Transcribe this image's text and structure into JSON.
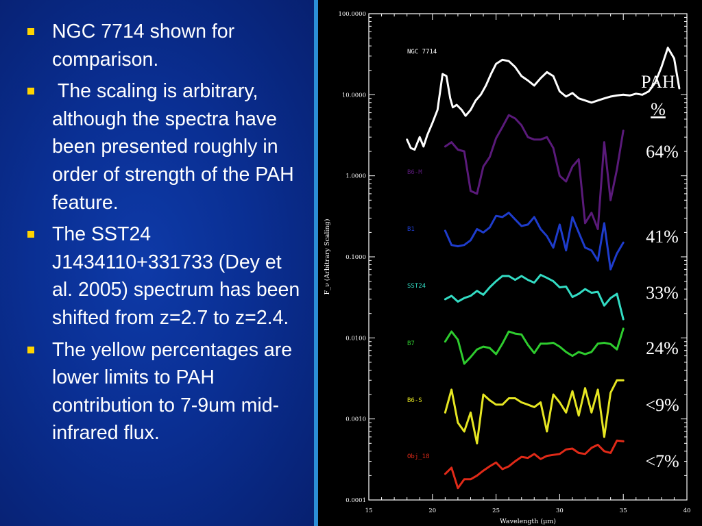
{
  "bullets": [
    {
      "text": "NGC 7714 shown for comparison."
    },
    {
      "text": " The scaling is arbitrary, although the spectra have been presented roughly in order of strength of the PAH feature."
    },
    {
      "text": "The SST24 J1434110+331733 (Dey et al. 2005) spectrum has been shifted from z=2.7 to z=2.4."
    },
    {
      "text": "The yellow percentages are lower limits to PAH contribution to 7-9um mid-infrared flux."
    }
  ],
  "colors": {
    "slide_background": "#0a2f93",
    "divider": "#2c8fd6",
    "bullet_marker": "#ffd400",
    "pah_text": "#ffffff"
  },
  "pah": {
    "header_line1": "PAH",
    "header_line2": "%",
    "values": [
      "64%",
      "41%",
      "33%",
      "24%",
      "<9%",
      "<7%"
    ]
  },
  "chart_data": {
    "type": "line",
    "xlabel": "Wavelength (μm)",
    "ylabel": "F_ν (Arbitrary Scaling)",
    "xlim": [
      15,
      40
    ],
    "ylim": [
      0.0001,
      100
    ],
    "yscale": "log",
    "x_ticks": [
      "15",
      "20",
      "25",
      "30",
      "35",
      "40"
    ],
    "y_ticks": [
      "100.0000",
      "10.0000",
      "1.0000",
      "0.1000",
      "0.0100",
      "0.0010",
      "0.0001"
    ],
    "grid": false,
    "series": [
      {
        "name": "NGC 7714",
        "color": "#ffffff",
        "x": [
          18.0,
          18.3,
          18.6,
          19.0,
          19.3,
          19.6,
          20.0,
          20.4,
          20.8,
          21.1,
          21.4,
          21.6,
          21.9,
          22.3,
          22.6,
          23.0,
          23.4,
          23.8,
          24.2,
          24.6,
          25.0,
          25.5,
          26.0,
          26.5,
          27.0,
          27.5,
          28.0,
          28.5,
          29.0,
          29.5,
          30.0,
          30.5,
          31.0,
          31.5,
          32.0,
          32.5,
          33.0,
          33.5,
          34.0,
          34.5,
          35.0,
          35.5,
          36.0,
          36.5,
          37.0,
          37.5,
          38.0,
          38.5,
          39.0,
          39.4
        ],
        "y": [
          2.8,
          2.2,
          2.1,
          3.0,
          2.3,
          3.2,
          4.5,
          6.5,
          18.0,
          17.0,
          9.0,
          7.0,
          7.5,
          6.5,
          5.5,
          6.5,
          8.5,
          10.0,
          13.0,
          18.0,
          24.0,
          27.0,
          26.0,
          22.0,
          17.0,
          15.0,
          13.0,
          16.0,
          19.0,
          17.0,
          11.0,
          9.5,
          10.5,
          9.0,
          8.5,
          8.0,
          8.5,
          9.0,
          9.5,
          9.8,
          10.0,
          9.8,
          10.3,
          10.0,
          11.0,
          14.0,
          22.0,
          38.0,
          28.0,
          12.0
        ]
      },
      {
        "name": "B6-M",
        "color": "#5a1a7a",
        "x": [
          21.0,
          21.5,
          22.0,
          22.5,
          23.0,
          23.5,
          24.0,
          24.5,
          25.0,
          25.5,
          26.0,
          26.5,
          27.0,
          27.5,
          28.0,
          28.5,
          29.0,
          29.5,
          30.0,
          30.5,
          31.0,
          31.5,
          32.0,
          32.5,
          33.0,
          33.5,
          34.0,
          34.5,
          35.0
        ],
        "y": [
          2.3,
          2.6,
          2.1,
          2.0,
          0.65,
          0.6,
          1.3,
          1.7,
          2.9,
          4.0,
          5.6,
          5.1,
          4.2,
          3.0,
          2.8,
          2.8,
          3.0,
          2.2,
          1.0,
          0.85,
          1.3,
          1.6,
          0.26,
          0.35,
          0.22,
          2.6,
          0.5,
          1.2,
          3.6
        ]
      },
      {
        "name": "B1",
        "color": "#1e3ccc",
        "x": [
          21.0,
          21.5,
          22.0,
          22.5,
          23.0,
          23.5,
          24.0,
          24.5,
          25.0,
          25.5,
          26.0,
          26.5,
          27.0,
          27.5,
          28.0,
          28.5,
          29.0,
          29.5,
          30.0,
          30.5,
          31.0,
          31.5,
          32.0,
          32.5,
          33.0,
          33.5,
          34.0,
          34.5,
          35.0
        ],
        "y": [
          0.21,
          0.14,
          0.135,
          0.14,
          0.16,
          0.22,
          0.2,
          0.23,
          0.32,
          0.31,
          0.35,
          0.29,
          0.24,
          0.25,
          0.31,
          0.22,
          0.18,
          0.13,
          0.25,
          0.12,
          0.31,
          0.2,
          0.13,
          0.12,
          0.09,
          0.26,
          0.07,
          0.11,
          0.15
        ]
      },
      {
        "name": "SST24",
        "color": "#33dcc4",
        "x": [
          21.0,
          21.5,
          22.0,
          22.5,
          23.0,
          23.5,
          24.0,
          24.5,
          25.0,
          25.5,
          26.0,
          26.5,
          27.0,
          27.5,
          28.0,
          28.5,
          29.0,
          29.5,
          30.0,
          30.5,
          31.0,
          31.5,
          32.0,
          32.5,
          33.0,
          33.5,
          34.0,
          34.5,
          35.0
        ],
        "y": [
          0.03,
          0.033,
          0.028,
          0.031,
          0.033,
          0.038,
          0.034,
          0.042,
          0.05,
          0.058,
          0.058,
          0.052,
          0.058,
          0.052,
          0.048,
          0.06,
          0.055,
          0.05,
          0.042,
          0.043,
          0.032,
          0.035,
          0.04,
          0.036,
          0.037,
          0.025,
          0.031,
          0.035,
          0.017
        ]
      },
      {
        "name": "B7",
        "color": "#2ecc2e",
        "x": [
          21.0,
          21.5,
          22.0,
          22.5,
          23.0,
          23.5,
          24.0,
          24.5,
          25.0,
          25.5,
          26.0,
          26.5,
          27.0,
          27.5,
          28.0,
          28.5,
          29.0,
          29.5,
          30.0,
          30.5,
          31.0,
          31.5,
          32.0,
          32.5,
          33.0,
          33.5,
          34.0,
          34.5,
          35.0
        ],
        "y": [
          0.009,
          0.012,
          0.0095,
          0.0048,
          0.0058,
          0.0072,
          0.0078,
          0.0075,
          0.0063,
          0.0085,
          0.012,
          0.0113,
          0.011,
          0.0082,
          0.0065,
          0.0085,
          0.0085,
          0.0087,
          0.0078,
          0.0067,
          0.006,
          0.0067,
          0.0063,
          0.0067,
          0.0085,
          0.0087,
          0.0084,
          0.0072,
          0.013
        ]
      },
      {
        "name": "B6-S",
        "color": "#e6e622",
        "x": [
          21.0,
          21.5,
          22.0,
          22.5,
          23.0,
          23.5,
          24.0,
          24.5,
          25.0,
          25.5,
          26.0,
          26.5,
          27.0,
          27.5,
          28.0,
          28.5,
          29.0,
          29.5,
          30.0,
          30.5,
          31.0,
          31.5,
          32.0,
          32.5,
          33.0,
          33.5,
          34.0,
          34.5,
          35.0
        ],
        "y": [
          0.0012,
          0.0023,
          0.0009,
          0.0007,
          0.0012,
          0.0005,
          0.002,
          0.0017,
          0.0015,
          0.0015,
          0.0018,
          0.0018,
          0.0016,
          0.0015,
          0.0014,
          0.0016,
          0.0007,
          0.002,
          0.0016,
          0.0012,
          0.0022,
          0.0011,
          0.0024,
          0.0012,
          0.0023,
          0.0006,
          0.0021,
          0.003,
          0.003
        ]
      },
      {
        "name": "Obj_18",
        "color": "#e02a18",
        "x": [
          21.0,
          21.5,
          22.0,
          22.5,
          23.0,
          23.5,
          24.0,
          24.5,
          25.0,
          25.5,
          26.0,
          26.5,
          27.0,
          27.5,
          28.0,
          28.5,
          29.0,
          29.5,
          30.0,
          30.5,
          31.0,
          31.5,
          32.0,
          32.5,
          33.0,
          33.5,
          34.0,
          34.5,
          35.0
        ],
        "y": [
          0.00021,
          0.00025,
          0.00014,
          0.00018,
          0.00018,
          0.0002,
          0.00023,
          0.00026,
          0.00029,
          0.00024,
          0.00026,
          0.0003,
          0.00034,
          0.00033,
          0.00037,
          0.00032,
          0.00035,
          0.00036,
          0.00037,
          0.00042,
          0.00043,
          0.00038,
          0.00037,
          0.00044,
          0.00048,
          0.0004,
          0.00038,
          0.00054,
          0.00053
        ]
      }
    ]
  }
}
